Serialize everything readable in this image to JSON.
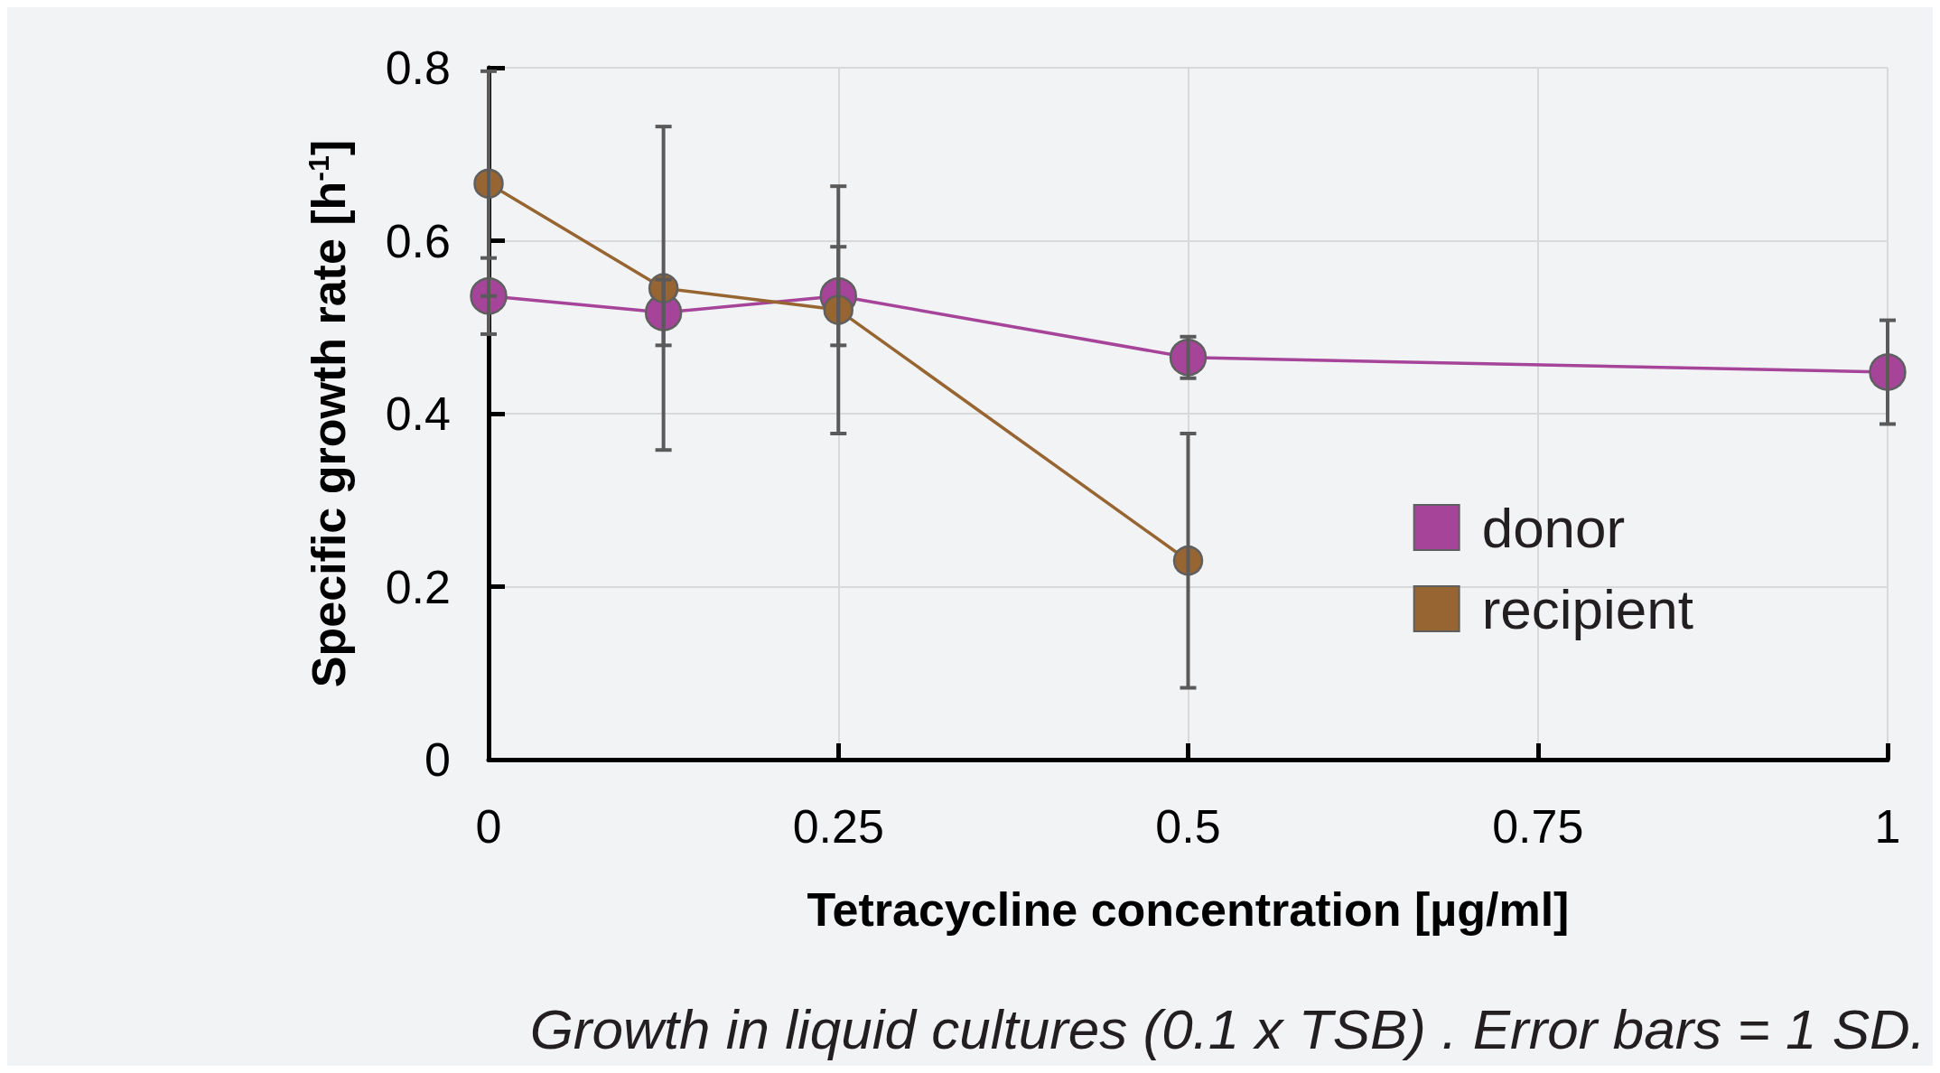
{
  "chart_data": {
    "type": "line",
    "xlabel": "Tetracycline concentration [µg/ml]",
    "ylabel": "Specific growth rate [h$^{-1}$]",
    "annotations": [
      "Growth in liquid cultures (0.1 x TSB) . Error bars = 1 SD."
    ],
    "xlim": [
      0,
      1
    ],
    "xticks": [
      0,
      0.25,
      0.5,
      0.75,
      1
    ],
    "ylim": [
      0,
      0.8
    ],
    "yticks": [
      0,
      0.2,
      0.4,
      0.6,
      0.8
    ],
    "grid": true,
    "legend": "right",
    "marker": "circle",
    "line_style": "solid",
    "series": [
      {
        "name": "donor",
        "color": "#a6449a",
        "x": [
          0,
          0.125,
          0.25,
          0.5,
          1
        ],
        "values": [
          0.536,
          0.517,
          0.536,
          0.465,
          0.448
        ],
        "errors": [
          0.044,
          0.038,
          0.057,
          0.024,
          0.06
        ]
      },
      {
        "name": "recipient",
        "color": "#976531",
        "x": [
          0,
          0.125,
          0.25,
          0.5
        ],
        "values": [
          0.666,
          0.545,
          0.52,
          0.23
        ],
        "errors": [
          0.13,
          0.187,
          0.143,
          0.147
        ]
      }
    ]
  }
}
